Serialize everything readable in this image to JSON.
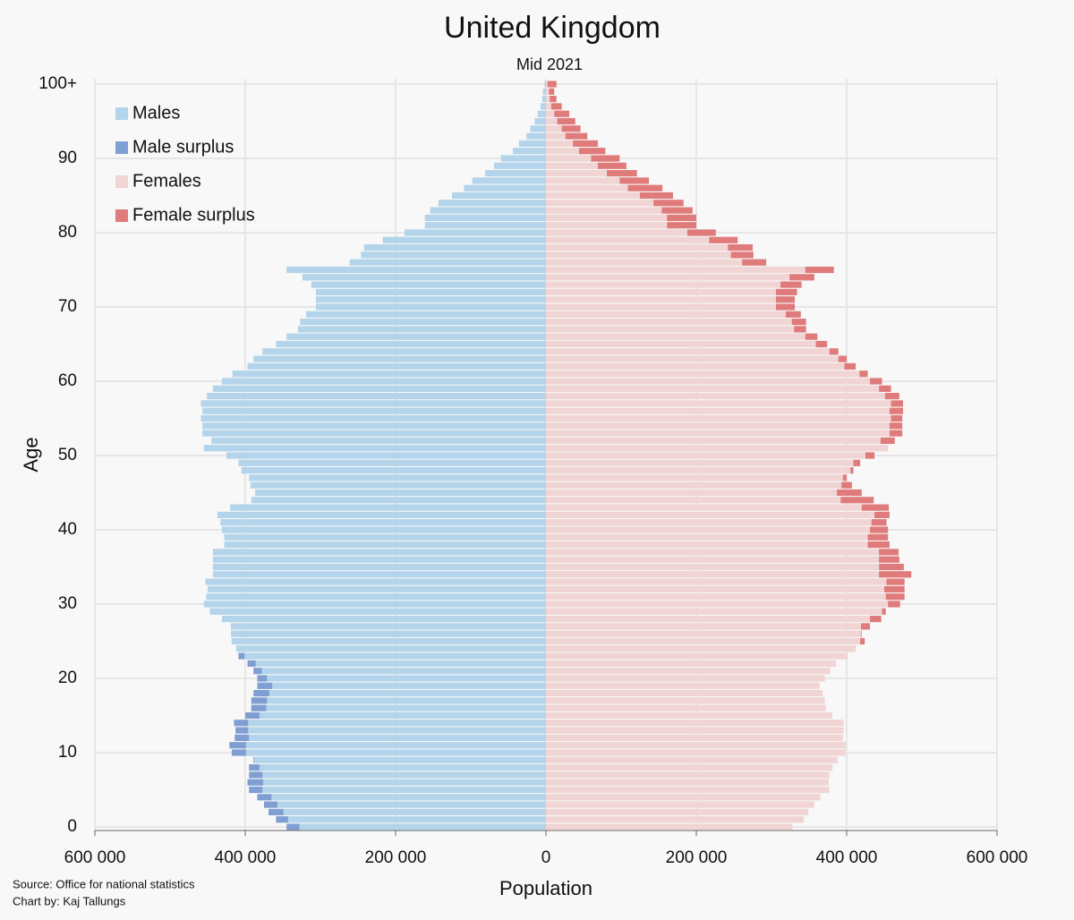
{
  "chart_data": {
    "type": "pyramid",
    "title": "United Kingdom",
    "subtitle": "Mid 2021",
    "xlabel": "Population",
    "ylabel": "Age",
    "source": "Source: Office for national statistics",
    "credit": "Chart by: Kaj Tallungs",
    "categories": [
      "0",
      null,
      null,
      null,
      null,
      null,
      null,
      null,
      null,
      null,
      "10",
      null,
      null,
      null,
      null,
      null,
      null,
      null,
      null,
      null,
      "20",
      null,
      null,
      null,
      null,
      null,
      null,
      null,
      null,
      null,
      "30",
      null,
      null,
      null,
      null,
      null,
      null,
      null,
      null,
      null,
      "40",
      null,
      null,
      null,
      null,
      null,
      null,
      null,
      null,
      null,
      "50",
      null,
      null,
      null,
      null,
      null,
      null,
      null,
      null,
      null,
      "60",
      null,
      null,
      null,
      null,
      null,
      null,
      null,
      null,
      null,
      "70",
      null,
      null,
      null,
      null,
      null,
      null,
      null,
      null,
      null,
      "80",
      null,
      null,
      null,
      null,
      null,
      null,
      null,
      null,
      null,
      "90",
      null,
      null,
      null,
      null,
      null,
      null,
      null,
      null,
      null,
      "100+"
    ],
    "series": [
      {
        "name": "Males",
        "side": "left",
        "color": "#b3d4ea",
        "values": [
          345000,
          359000,
          369000,
          375000,
          384000,
          395000,
          397000,
          395000,
          395000,
          389000,
          418000,
          421000,
          414000,
          413000,
          415000,
          400000,
          392000,
          392000,
          389000,
          384000,
          384000,
          389000,
          397000,
          409000,
          412000,
          418000,
          419000,
          419000,
          431000,
          447000,
          455000,
          452000,
          450000,
          453000,
          443000,
          443000,
          443000,
          443000,
          428000,
          428000,
          431000,
          433000,
          437000,
          420000,
          392000,
          387000,
          393000,
          395000,
          405000,
          409000,
          425000,
          455000,
          445000,
          457000,
          457000,
          459000,
          457000,
          459000,
          451000,
          443000,
          431000,
          417000,
          397000,
          389000,
          377000,
          359000,
          345000,
          330000,
          327000,
          319000,
          306000,
          306000,
          306000,
          312000,
          324000,
          345000,
          261000,
          246000,
          242000,
          217000,
          188000,
          161000,
          161000,
          154000,
          143000,
          125000,
          109000,
          98000,
          81000,
          69000,
          60000,
          44000,
          36000,
          26000,
          21000,
          15000,
          11000,
          7000,
          5000,
          4000,
          2000
        ]
      },
      {
        "name": "Females",
        "side": "right",
        "color": "#f1d4d4",
        "values": [
          328000,
          343000,
          349000,
          357000,
          365000,
          377000,
          376000,
          377000,
          381000,
          388000,
          399000,
          399000,
          395000,
          396000,
          396000,
          381000,
          372000,
          371000,
          368000,
          364000,
          371000,
          378000,
          386000,
          401000,
          412000,
          424000,
          420000,
          431000,
          446000,
          452000,
          471000,
          477000,
          477000,
          477000,
          486000,
          476000,
          470000,
          469000,
          457000,
          455000,
          455000,
          453000,
          457000,
          456000,
          436000,
          420000,
          407000,
          400000,
          409000,
          418000,
          437000,
          455000,
          464000,
          474000,
          474000,
          474000,
          475000,
          475000,
          470000,
          459000,
          447000,
          428000,
          412000,
          400000,
          389000,
          374000,
          361000,
          346000,
          346000,
          339000,
          331000,
          331000,
          334000,
          340000,
          357000,
          383000,
          293000,
          276000,
          275000,
          255000,
          226000,
          200000,
          200000,
          195000,
          183000,
          169000,
          155000,
          137000,
          121000,
          107000,
          98000,
          79000,
          69000,
          55000,
          46000,
          39000,
          31000,
          21000,
          14000,
          11000,
          14000
        ]
      }
    ],
    "surplus": [
      {
        "name": "Male surplus",
        "color": "#7f9fd2"
      },
      {
        "name": "Female surplus",
        "color": "#e07b7b"
      }
    ],
    "xlim": [
      -600000,
      600000
    ],
    "xticks": [
      {
        "value": -600000,
        "label": "600 000"
      },
      {
        "value": -400000,
        "label": "400 000"
      },
      {
        "value": -200000,
        "label": "200 000"
      },
      0,
      {
        "value": 200000,
        "label": "200 000"
      },
      {
        "value": 400000,
        "label": "400 000"
      },
      {
        "value": 600000,
        "label": "600 000"
      }
    ],
    "grid": true,
    "legend": "top-left"
  }
}
